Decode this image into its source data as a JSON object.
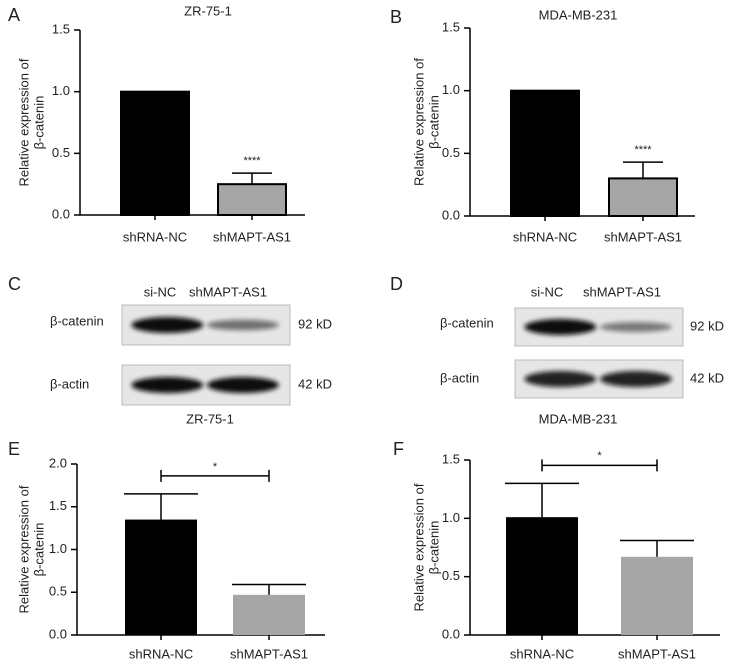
{
  "chart_data": [
    {
      "type": "bar",
      "panel_label": "A",
      "title": "ZR-75-1",
      "ylabel": [
        "Relative expression of",
        "β-catenin"
      ],
      "categories": [
        "shRNA-NC",
        "shMAPT-AS1"
      ],
      "values": [
        1.0,
        0.25
      ],
      "errors": [
        0,
        0.09
      ],
      "colors": [
        "#000000",
        "#a6a6a6"
      ],
      "edgecolor": "#000000",
      "ylim": [
        0,
        1.5
      ],
      "yticks": [
        {
          "value": 0,
          "label": "0.0"
        },
        0.5,
        {
          "value": 1,
          "label": "1.0"
        },
        1.5
      ],
      "significance": {
        "label": "****",
        "category": "shMAPT-AS1"
      }
    },
    {
      "type": "bar",
      "panel_label": "B",
      "title": "MDA-MB-231",
      "ylabel": [
        "Relative expression of",
        "β-catenin"
      ],
      "categories": [
        "shRNA-NC",
        "shMAPT-AS1"
      ],
      "values": [
        1.0,
        0.3
      ],
      "errors": [
        0,
        0.13
      ],
      "colors": [
        "#000000",
        "#a6a6a6"
      ],
      "edgecolor": "#000000",
      "ylim": [
        0,
        1.5
      ],
      "yticks": [
        {
          "value": 0,
          "label": "0.0"
        },
        0.5,
        {
          "value": 1,
          "label": "1.0"
        },
        1.5
      ],
      "significance": {
        "label": "****",
        "category": "shMAPT-AS1"
      }
    },
    {
      "type": "bar",
      "panel_label": "E",
      "title": "ZR-75-1",
      "ylabel": [
        "Relative expression of",
        "β-catenin"
      ],
      "categories": [
        "shRNA-NC",
        "shMAPT-AS1"
      ],
      "values": [
        1.35,
        0.47
      ],
      "errors": [
        0.3,
        0.12
      ],
      "colors": [
        "#000000",
        "#a6a6a6"
      ],
      "ylim": [
        0,
        2.0
      ],
      "yticks": [
        {
          "value": 0,
          "label": "0.0"
        },
        0.5,
        {
          "value": 1,
          "label": "1.0"
        },
        1.5,
        {
          "value": 2,
          "label": "2.0"
        }
      ],
      "significance": {
        "label": "*",
        "bracket": [
          "shRNA-NC",
          "shMAPT-AS1"
        ]
      }
    },
    {
      "type": "bar",
      "panel_label": "F",
      "title": "MDA-MB-231",
      "ylabel": [
        "Relative expression of",
        "β-catenin"
      ],
      "categories": [
        "shRNA-NC",
        "shMAPT-AS1"
      ],
      "values": [
        1.01,
        0.67
      ],
      "errors": [
        0.29,
        0.14
      ],
      "colors": [
        "#000000",
        "#a6a6a6"
      ],
      "ylim": [
        0,
        1.5
      ],
      "yticks": [
        {
          "value": 0,
          "label": "0.0"
        },
        0.5,
        {
          "value": 1,
          "label": "1.0"
        },
        1.5
      ],
      "significance": {
        "label": "*",
        "bracket": [
          "shRNA-NC",
          "shMAPT-AS1"
        ]
      }
    }
  ],
  "blots": [
    {
      "panel_label": "C",
      "lanes": [
        "si-NC",
        "shMAPT-AS1"
      ],
      "rows": [
        {
          "label": "β-catenin",
          "size": "92 kD"
        },
        {
          "label": "β-actin",
          "size": "42 kD"
        }
      ]
    },
    {
      "panel_label": "D",
      "lanes": [
        "si-NC",
        "shMAPT-AS1"
      ],
      "rows": [
        {
          "label": "β-catenin",
          "size": "92 kD"
        },
        {
          "label": "β-actin",
          "size": "42 kD"
        }
      ]
    }
  ]
}
